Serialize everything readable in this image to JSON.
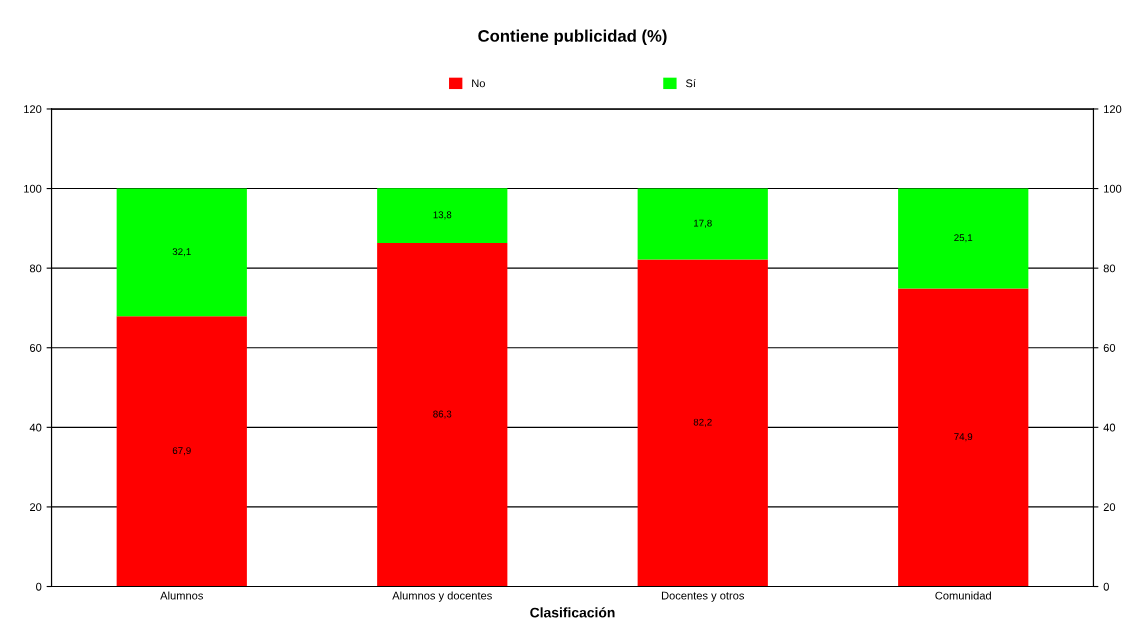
{
  "chart_data": {
    "type": "bar",
    "title": "Contiene publicidad (%)",
    "xlabel": "Clasificación",
    "categories": [
      "Alumnos",
      "Alumnos y docentes",
      "Docentes y otros",
      "Comunidad"
    ],
    "stacked": true,
    "series": [
      {
        "name": "No",
        "color": "#ff0000",
        "values": [
          67.9,
          86.3,
          82.2,
          74.9
        ],
        "value_labels": [
          "67,9",
          "86,3",
          "82,2",
          "74,9"
        ]
      },
      {
        "name": "Sí",
        "color": "#00ff00",
        "values": [
          32.1,
          13.8,
          17.8,
          25.1
        ],
        "value_labels": [
          "32,1",
          "13,8",
          "17,8",
          "25,1"
        ]
      }
    ],
    "ylim": [
      0,
      120
    ],
    "yticks": [
      0,
      20,
      40,
      60,
      80,
      100,
      120
    ],
    "y2lim": [
      0,
      120
    ],
    "y2ticks": [
      0,
      20,
      40,
      60,
      80,
      100,
      120
    ],
    "grid": true,
    "legend": "top"
  }
}
